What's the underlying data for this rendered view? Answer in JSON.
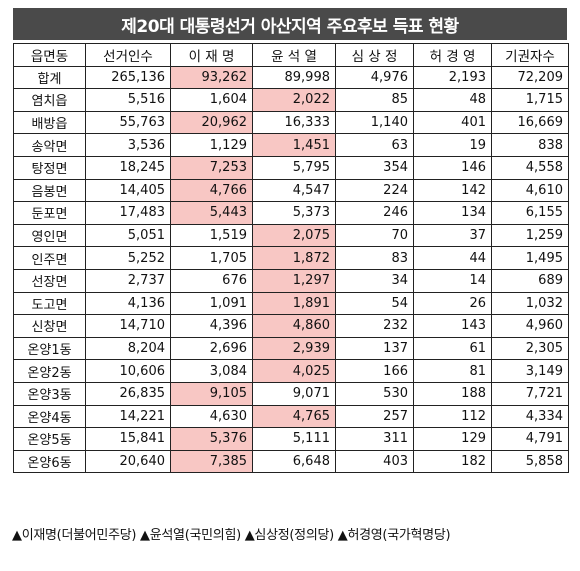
{
  "title": "제20대 대통령선거 아산지역 주요후보 득표 현황",
  "highlight_color": "#f8c7c4",
  "header_color": "#4a4a4a",
  "columns": [
    "읍면동",
    "선거인수",
    "이 재 명",
    "윤 석 열",
    "심 상 정",
    "허 경 영",
    "기권자수"
  ],
  "rows": [
    {
      "name": "합계",
      "cells": [
        "265,136",
        "93,262",
        "89,998",
        "4,976",
        "2,193",
        "72,209"
      ],
      "winner": 1
    },
    {
      "name": "염치읍",
      "cells": [
        "5,516",
        "1,604",
        "2,022",
        "85",
        "48",
        "1,715"
      ],
      "winner": 2
    },
    {
      "name": "배방읍",
      "cells": [
        "55,763",
        "20,962",
        "16,333",
        "1,140",
        "401",
        "16,669"
      ],
      "winner": 1
    },
    {
      "name": "송악면",
      "cells": [
        "3,536",
        "1,129",
        "1,451",
        "63",
        "19",
        "838"
      ],
      "winner": 2
    },
    {
      "name": "탕정면",
      "cells": [
        "18,245",
        "7,253",
        "5,795",
        "354",
        "146",
        "4,558"
      ],
      "winner": 1
    },
    {
      "name": "음봉면",
      "cells": [
        "14,405",
        "4,766",
        "4,547",
        "224",
        "142",
        "4,610"
      ],
      "winner": 1
    },
    {
      "name": "둔포면",
      "cells": [
        "17,483",
        "5,443",
        "5,373",
        "246",
        "134",
        "6,155"
      ],
      "winner": 1
    },
    {
      "name": "영인면",
      "cells": [
        "5,051",
        "1,519",
        "2,075",
        "70",
        "37",
        "1,259"
      ],
      "winner": 2
    },
    {
      "name": "인주면",
      "cells": [
        "5,252",
        "1,705",
        "1,872",
        "83",
        "44",
        "1,495"
      ],
      "winner": 2
    },
    {
      "name": "선장면",
      "cells": [
        "2,737",
        "676",
        "1,297",
        "34",
        "14",
        "689"
      ],
      "winner": 2
    },
    {
      "name": "도고면",
      "cells": [
        "4,136",
        "1,091",
        "1,891",
        "54",
        "26",
        "1,032"
      ],
      "winner": 2
    },
    {
      "name": "신창면",
      "cells": [
        "14,710",
        "4,396",
        "4,860",
        "232",
        "143",
        "4,960"
      ],
      "winner": 2
    },
    {
      "name": "온양1동",
      "cells": [
        "8,204",
        "2,696",
        "2,939",
        "137",
        "61",
        "2,305"
      ],
      "winner": 2
    },
    {
      "name": "온양2동",
      "cells": [
        "10,606",
        "3,084",
        "4,025",
        "166",
        "81",
        "3,149"
      ],
      "winner": 2
    },
    {
      "name": "온양3동",
      "cells": [
        "26,835",
        "9,105",
        "9,071",
        "530",
        "188",
        "7,721"
      ],
      "winner": 1
    },
    {
      "name": "온양4동",
      "cells": [
        "14,221",
        "4,630",
        "4,765",
        "257",
        "112",
        "4,334"
      ],
      "winner": 2
    },
    {
      "name": "온양5동",
      "cells": [
        "15,841",
        "5,376",
        "5,111",
        "311",
        "129",
        "4,791"
      ],
      "winner": 1
    },
    {
      "name": "온양6동",
      "cells": [
        "20,640",
        "7,385",
        "6,648",
        "403",
        "182",
        "5,858"
      ],
      "winner": 1
    }
  ],
  "legend": "▲이재명(더불어민주당) ▲윤석열(국민의힘) ▲심상정(정의당) ▲허경영(국가혁명당)"
}
